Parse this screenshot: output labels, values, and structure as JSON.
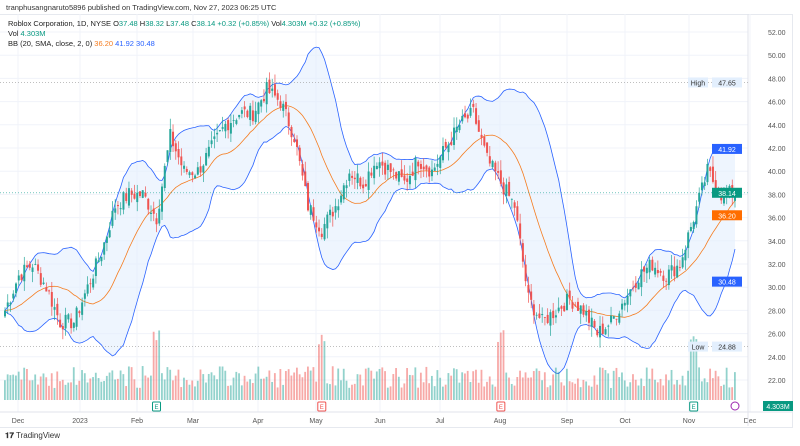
{
  "publisher_line": "tranphusangnaruto5896 published on TradingView.com, Nov 27, 2023 06:25 UTC",
  "legend": {
    "symbol": "Roblox Corporation, 1D, NYSE",
    "o_label": "O",
    "o": "37.48",
    "h_label": "H",
    "h": "38.32",
    "l_label": "L",
    "l": "37.48",
    "c_label": "C",
    "c": "38.14",
    "change": "+0.32 (+0.85%)",
    "vol_label": "Vol",
    "vol": "4.303M",
    "vol_change": "+0.32 (+0.85%)",
    "vol2_label": "Vol",
    "vol2": "4.303M",
    "bb_label": "BB (20, SMA, close, 2, 0)",
    "bb_basis": "36.20",
    "bb_upper": "41.92",
    "bb_lower": "30.48"
  },
  "colors": {
    "up": "#26a69a",
    "down": "#ef5350",
    "basis": "#f57c1f",
    "band": "#2962ff",
    "fill": "#e3effd"
  },
  "price_labels": {
    "high_label": "High",
    "high": "47.65",
    "low_label": "Low",
    "low": "24.88",
    "last": "38.14",
    "upper": "41.92",
    "basis": "36.20",
    "lower": "30.48",
    "volume": "4.303M"
  },
  "footer": {
    "brand": "TradingView"
  },
  "chart_data": {
    "type": "candlestick",
    "title": "Roblox Corporation, 1D, NYSE",
    "y_ticks": [
      "22.00",
      "24.00",
      "26.00",
      "28.00",
      "30.00",
      "32.00",
      "34.00",
      "36.00",
      "38.00",
      "40.00",
      "42.00",
      "44.00",
      "46.00",
      "48.00",
      "50.00",
      "52.00"
    ],
    "ylim": [
      22,
      52
    ],
    "x_ticks": [
      "Dec",
      "2023",
      "Feb",
      "Mar",
      "Apr",
      "May",
      "Jun",
      "Jul",
      "Aug",
      "Sep",
      "Oct",
      "Nov",
      "Dec"
    ],
    "weekly_closes_approx": [
      28,
      31,
      32,
      30,
      27,
      27,
      30,
      33,
      37,
      38,
      38,
      36,
      43,
      40,
      40,
      42,
      44,
      45,
      45,
      47,
      46,
      43,
      37,
      35,
      37,
      40,
      39,
      41,
      40,
      39,
      41,
      40,
      42,
      44,
      45,
      41,
      39,
      37,
      29,
      27,
      28,
      29,
      28,
      26,
      27,
      29,
      31,
      32,
      31,
      32,
      36,
      40,
      38,
      38.14
    ],
    "earnings_markers": [
      {
        "label": "E",
        "week": 11,
        "color": "#089981"
      },
      {
        "label": "E",
        "week": 23,
        "color": "#ef5350"
      },
      {
        "label": "E",
        "week": 36,
        "color": "#ef5350"
      },
      {
        "label": "E",
        "week": 50,
        "color": "#089981"
      }
    ],
    "bollinger": {
      "length": 20,
      "mult": 2
    }
  }
}
